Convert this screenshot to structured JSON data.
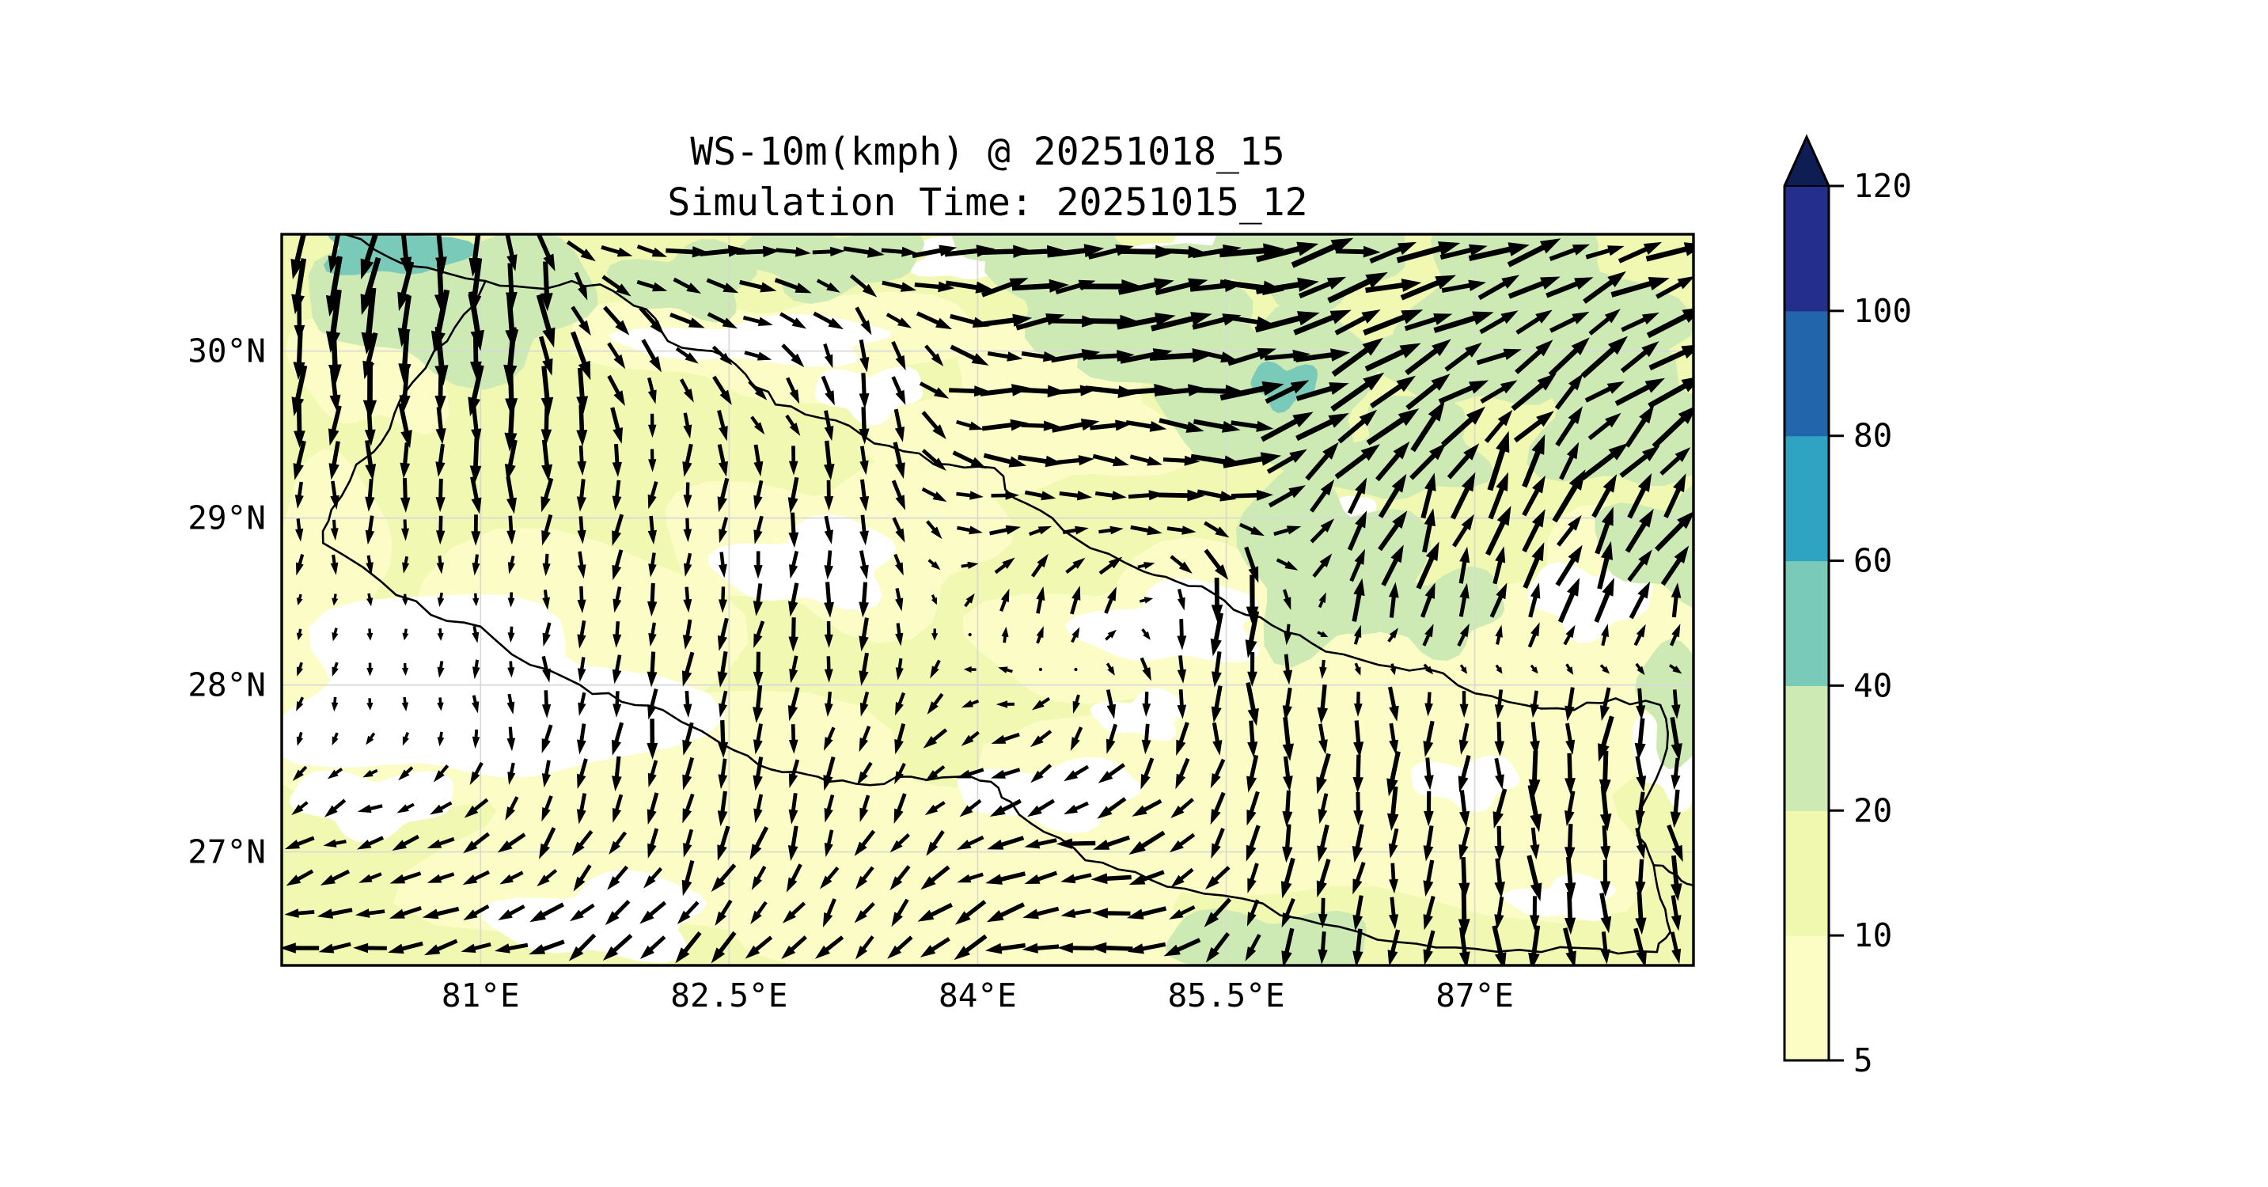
{
  "chart_data": {
    "type": "map-quiver-contourf",
    "title": "WS-10m(kmph) @ 20251018_15",
    "subtitle": "Simulation Time: 20251015_12",
    "extent": {
      "lon_min": 79.8,
      "lon_max": 88.32,
      "lat_min": 26.32,
      "lat_max": 30.7
    },
    "x_ticks": [
      {
        "v": 81.0,
        "label": "81°E"
      },
      {
        "v": 82.5,
        "label": "82.5°E"
      },
      {
        "v": 84.0,
        "label": "84°E"
      },
      {
        "v": 85.5,
        "label": "85.5°E"
      },
      {
        "v": 87.0,
        "label": "87°E"
      }
    ],
    "y_ticks": [
      {
        "v": 30.0,
        "label": "30°N"
      },
      {
        "v": 29.0,
        "label": "29°N"
      },
      {
        "v": 28.0,
        "label": "28°N"
      },
      {
        "v": 27.0,
        "label": "27°N"
      }
    ],
    "grid_on": true,
    "gridline_color": "#d8d8d8",
    "frame_color": "#000000",
    "fill": {
      "base_color": "#f1f8b2",
      "pale_color": "#fcfdc6",
      "white_color": "#ffffff",
      "green_color": "#cdeab4",
      "teal_color": "#79cab8",
      "pale_blobs": [
        [
          81.1,
          27.95,
          1.55,
          0.85
        ],
        [
          82.6,
          27.15,
          2.0,
          0.75
        ],
        [
          86.4,
          27.45,
          1.9,
          0.85
        ],
        [
          83.2,
          28.85,
          0.95,
          0.5
        ],
        [
          85.1,
          28.3,
          0.95,
          0.5
        ],
        [
          82.8,
          30.05,
          1.15,
          0.3
        ],
        [
          84.35,
          29.62,
          0.85,
          0.5
        ],
        [
          87.8,
          28.45,
          0.8,
          0.55
        ],
        [
          80.4,
          30.0,
          0.45,
          0.5
        ],
        [
          84.2,
          26.6,
          1.3,
          0.45
        ],
        [
          79.95,
          28.6,
          0.5,
          0.7
        ]
      ],
      "white_blobs": [
        [
          80.95,
          27.95,
          1.15,
          0.55
        ],
        [
          80.35,
          27.3,
          0.45,
          0.2
        ],
        [
          83.0,
          28.72,
          0.5,
          0.26
        ],
        [
          82.7,
          30.06,
          0.75,
          0.14
        ],
        [
          83.35,
          29.75,
          0.3,
          0.16
        ],
        [
          85.2,
          28.36,
          0.52,
          0.24
        ],
        [
          84.45,
          27.35,
          0.5,
          0.2
        ],
        [
          85.0,
          27.82,
          0.26,
          0.14
        ],
        [
          86.95,
          27.42,
          0.3,
          0.15
        ],
        [
          87.55,
          26.72,
          0.3,
          0.13
        ],
        [
          83.9,
          30.55,
          0.28,
          0.13
        ],
        [
          85.3,
          30.6,
          0.3,
          0.12
        ],
        [
          87.7,
          28.52,
          0.34,
          0.22
        ],
        [
          81.75,
          26.6,
          0.6,
          0.25
        ],
        [
          84.8,
          30.1,
          0.25,
          0.12
        ],
        [
          86.3,
          29.0,
          0.18,
          0.12
        ],
        [
          88.2,
          27.6,
          0.22,
          0.3
        ]
      ],
      "green_blobs": [
        [
          80.85,
          30.28,
          0.8,
          0.42
        ],
        [
          84.75,
          30.4,
          0.65,
          0.38
        ],
        [
          85.8,
          29.72,
          0.6,
          0.5
        ],
        [
          86.0,
          30.55,
          0.55,
          0.28
        ],
        [
          87.35,
          30.32,
          0.75,
          0.5
        ],
        [
          87.95,
          29.6,
          0.6,
          0.45
        ],
        [
          88.25,
          28.85,
          0.45,
          0.35
        ],
        [
          86.1,
          28.72,
          0.5,
          0.55
        ],
        [
          83.1,
          30.55,
          0.5,
          0.22
        ],
        [
          84.35,
          30.65,
          0.45,
          0.18
        ],
        [
          85.75,
          26.42,
          0.55,
          0.25
        ],
        [
          88.3,
          27.9,
          0.3,
          0.35
        ],
        [
          86.6,
          29.4,
          0.45,
          0.3
        ],
        [
          87.0,
          30.0,
          0.5,
          0.35
        ],
        [
          85.3,
          30.05,
          0.6,
          0.35
        ],
        [
          86.75,
          28.45,
          0.4,
          0.25
        ],
        [
          82.25,
          30.42,
          0.4,
          0.22
        ]
      ],
      "teal_blobs": [
        [
          80.45,
          30.62,
          0.4,
          0.18
        ],
        [
          85.85,
          29.8,
          0.18,
          0.14
        ]
      ]
    },
    "nepal_border": [
      [
        80.05,
        28.85
      ],
      [
        80.1,
        29.05
      ],
      [
        80.25,
        29.32
      ],
      [
        80.4,
        29.45
      ],
      [
        80.52,
        29.72
      ],
      [
        80.72,
        30.0
      ],
      [
        80.9,
        30.22
      ],
      [
        81.03,
        30.42
      ],
      [
        81.3,
        30.38
      ],
      [
        81.55,
        30.42
      ],
      [
        81.8,
        30.36
      ],
      [
        82.0,
        30.25
      ],
      [
        82.13,
        30.06
      ],
      [
        82.4,
        30.0
      ],
      [
        82.6,
        29.86
      ],
      [
        82.78,
        29.68
      ],
      [
        83.05,
        29.6
      ],
      [
        83.3,
        29.5
      ],
      [
        83.55,
        29.4
      ],
      [
        83.83,
        29.32
      ],
      [
        84.1,
        29.3
      ],
      [
        84.22,
        29.12
      ],
      [
        84.45,
        29.0
      ],
      [
        84.68,
        28.82
      ],
      [
        85.0,
        28.68
      ],
      [
        85.2,
        28.62
      ],
      [
        85.42,
        28.55
      ],
      [
        85.62,
        28.42
      ],
      [
        85.85,
        28.32
      ],
      [
        86.1,
        28.2
      ],
      [
        86.42,
        28.12
      ],
      [
        86.7,
        28.1
      ],
      [
        87.0,
        27.95
      ],
      [
        87.3,
        27.88
      ],
      [
        87.6,
        27.85
      ],
      [
        87.85,
        27.92
      ],
      [
        88.12,
        27.88
      ],
      [
        88.16,
        27.62
      ],
      [
        88.05,
        27.35
      ],
      [
        87.98,
        27.1
      ],
      [
        88.08,
        26.92
      ],
      [
        88.12,
        26.72
      ],
      [
        88.18,
        26.52
      ],
      [
        88.1,
        26.4
      ],
      [
        87.75,
        26.42
      ],
      [
        87.4,
        26.4
      ],
      [
        87.0,
        26.42
      ],
      [
        86.65,
        26.45
      ],
      [
        86.3,
        26.52
      ],
      [
        85.95,
        26.6
      ],
      [
        85.6,
        26.72
      ],
      [
        85.25,
        26.78
      ],
      [
        84.95,
        26.88
      ],
      [
        84.65,
        26.95
      ],
      [
        84.4,
        27.12
      ],
      [
        84.2,
        27.3
      ],
      [
        84.08,
        27.42
      ],
      [
        83.88,
        27.45
      ],
      [
        83.6,
        27.45
      ],
      [
        83.35,
        27.4
      ],
      [
        83.1,
        27.42
      ],
      [
        82.9,
        27.48
      ],
      [
        82.68,
        27.52
      ],
      [
        82.45,
        27.65
      ],
      [
        82.1,
        27.85
      ],
      [
        81.85,
        27.9
      ],
      [
        81.6,
        28.0
      ],
      [
        81.3,
        28.12
      ],
      [
        81.0,
        28.35
      ],
      [
        80.7,
        28.42
      ],
      [
        80.4,
        28.62
      ],
      [
        80.05,
        28.85
      ]
    ],
    "extra_borders": [
      [
        [
          80.18,
          30.7
        ],
        [
          80.45,
          30.56
        ],
        [
          80.68,
          30.5
        ],
        [
          81.03,
          30.42
        ]
      ],
      [
        [
          88.08,
          26.92
        ],
        [
          88.22,
          26.86
        ],
        [
          88.32,
          26.8
        ],
        [
          88.44,
          26.78
        ]
      ]
    ],
    "wind": {
      "lons": [
        79.8,
        80.52,
        81.24,
        81.96,
        82.68,
        83.4,
        84.12,
        84.84,
        85.56,
        86.28,
        87.0,
        87.72,
        88.44
      ],
      "lats": [
        30.7,
        29.97,
        29.24,
        28.51,
        27.78,
        27.05,
        26.32
      ],
      "dir_deg": [
        [
          255,
          265,
          285,
          0,
          5,
          0,
          10,
          15,
          5,
          10,
          20,
          15,
          25
        ],
        [
          260,
          270,
          272,
          300,
          335,
          280,
          0,
          10,
          0,
          25,
          25,
          35,
          30
        ],
        [
          265,
          268,
          270,
          255,
          268,
          280,
          0,
          350,
          0,
          55,
          65,
          55,
          45
        ],
        [
          270,
          270,
          270,
          268,
          262,
          270,
          75,
          65,
          270,
          75,
          75,
          70,
          80
        ],
        [
          255,
          262,
          270,
          268,
          264,
          252,
          195,
          268,
          272,
          268,
          268,
          264,
          278
        ],
        [
          205,
          198,
          228,
          248,
          253,
          242,
          208,
          188,
          248,
          262,
          268,
          274,
          280
        ],
        [
          185,
          190,
          200,
          214,
          224,
          230,
          196,
          184,
          238,
          258,
          272,
          280,
          286
        ]
      ],
      "mag": [
        [
          0.75,
          0.9,
          0.65,
          0.55,
          0.65,
          0.6,
          0.8,
          0.85,
          0.9,
          0.9,
          0.85,
          0.8,
          0.8
        ],
        [
          0.8,
          1.0,
          0.9,
          0.5,
          0.45,
          0.5,
          0.65,
          0.8,
          0.9,
          0.9,
          0.85,
          0.8,
          0.85
        ],
        [
          0.5,
          0.55,
          0.5,
          0.4,
          0.45,
          0.55,
          0.6,
          0.5,
          0.8,
          0.8,
          0.85,
          0.8,
          0.8
        ],
        [
          0.12,
          0.1,
          0.2,
          0.4,
          0.4,
          0.45,
          0.35,
          0.4,
          0.85,
          0.55,
          0.65,
          0.65,
          0.65
        ],
        [
          0.15,
          0.12,
          0.3,
          0.5,
          0.5,
          0.4,
          0.35,
          0.5,
          0.55,
          0.6,
          0.6,
          0.6,
          0.65
        ],
        [
          0.4,
          0.4,
          0.45,
          0.5,
          0.5,
          0.42,
          0.5,
          0.6,
          0.5,
          0.55,
          0.6,
          0.6,
          0.6
        ],
        [
          0.5,
          0.5,
          0.5,
          0.5,
          0.5,
          0.5,
          0.55,
          0.6,
          0.5,
          0.55,
          0.6,
          0.6,
          0.6
        ]
      ],
      "arrow_color": "#000000"
    },
    "colorbar": {
      "orientation": "vertical",
      "levels": [
        5,
        10,
        20,
        40,
        60,
        80,
        100,
        120
      ],
      "tick_labels": [
        "5",
        "10",
        "20",
        "40",
        "60",
        "80",
        "100",
        "120"
      ],
      "colors": [
        "#fcfdc4",
        "#f0f8b0",
        "#cdeab4",
        "#79cab8",
        "#2fa3c2",
        "#2265ab",
        "#242f8d"
      ],
      "over_color": "#0f1d55",
      "extend": "max"
    }
  }
}
